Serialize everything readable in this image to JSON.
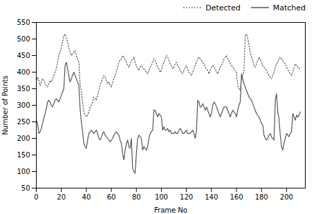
{
  "chart_data": {
    "type": "line",
    "x": [
      0,
      1,
      2,
      3,
      4,
      5,
      6,
      7,
      8,
      9,
      10,
      11,
      12,
      13,
      14,
      15,
      16,
      17,
      18,
      19,
      20,
      21,
      22,
      23,
      24,
      25,
      26,
      27,
      28,
      29,
      30,
      31,
      32,
      33,
      34,
      35,
      36,
      37,
      38,
      39,
      40,
      41,
      42,
      43,
      44,
      45,
      46,
      47,
      48,
      49,
      50,
      51,
      52,
      53,
      54,
      55,
      56,
      57,
      58,
      59,
      60,
      61,
      62,
      63,
      64,
      65,
      66,
      67,
      68,
      69,
      70,
      71,
      72,
      73,
      74,
      75,
      76,
      77,
      78,
      79,
      80,
      81,
      82,
      83,
      84,
      85,
      86,
      87,
      88,
      89,
      90,
      91,
      92,
      93,
      94,
      95,
      96,
      97,
      98,
      99,
      100,
      101,
      102,
      103,
      104,
      105,
      106,
      107,
      108,
      109,
      110,
      111,
      112,
      113,
      114,
      115,
      116,
      117,
      118,
      119,
      120,
      121,
      122,
      123,
      124,
      125,
      126,
      127,
      128,
      129,
      130,
      131,
      132,
      133,
      134,
      135,
      136,
      137,
      138,
      139,
      140,
      141,
      142,
      143,
      144,
      145,
      146,
      147,
      148,
      149,
      150,
      151,
      152,
      153,
      154,
      155,
      156,
      157,
      158,
      159,
      160,
      161,
      162,
      163,
      164,
      165,
      166,
      167,
      168,
      169,
      170,
      171,
      172,
      173,
      174,
      175,
      176,
      177,
      178,
      179,
      180,
      181,
      182,
      183,
      184,
      185,
      186,
      187,
      188,
      189,
      190,
      191,
      192,
      193,
      194,
      195,
      196,
      197,
      198,
      199,
      200,
      201,
      202,
      203,
      204,
      205,
      206,
      207,
      208,
      209,
      210,
      211
    ],
    "series": [
      {
        "name": "Detected",
        "color": "#555555",
        "line_style": "dotted",
        "values": [
          370,
          385,
          375,
          360,
          370,
          380,
          375,
          365,
          360,
          355,
          365,
          375,
          370,
          380,
          390,
          400,
          410,
          430,
          450,
          460,
          475,
          490,
          510,
          515,
          505,
          490,
          475,
          460,
          450,
          455,
          460,
          465,
          450,
          440,
          430,
          365,
          340,
          310,
          280,
          270,
          265,
          270,
          280,
          295,
          300,
          310,
          325,
          320,
          315,
          330,
          345,
          360,
          370,
          380,
          390,
          385,
          375,
          365,
          370,
          360,
          355,
          370,
          380,
          390,
          400,
          415,
          430,
          435,
          440,
          450,
          445,
          435,
          430,
          420,
          415,
          425,
          435,
          440,
          445,
          430,
          420,
          410,
          405,
          415,
          420,
          415,
          410,
          405,
          400,
          395,
          405,
          415,
          420,
          430,
          440,
          435,
          425,
          415,
          410,
          400,
          405,
          420,
          430,
          440,
          450,
          445,
          435,
          425,
          420,
          410,
          415,
          425,
          430,
          420,
          415,
          405,
          400,
          395,
          405,
          415,
          420,
          410,
          400,
          395,
          390,
          400,
          410,
          420,
          430,
          440,
          445,
          440,
          435,
          430,
          425,
          415,
          410,
          405,
          395,
          405,
          415,
          420,
          415,
          410,
          400,
          395,
          405,
          415,
          420,
          430,
          440,
          445,
          450,
          440,
          435,
          425,
          420,
          415,
          410,
          405,
          400,
          360,
          350,
          345,
          380,
          390,
          400,
          510,
          515,
          505,
          480,
          460,
          445,
          435,
          420,
          415,
          425,
          435,
          445,
          440,
          430,
          420,
          415,
          410,
          405,
          395,
          390,
          385,
          380,
          390,
          400,
          415,
          425,
          430,
          440,
          445,
          440,
          435,
          430,
          425,
          415,
          410,
          400,
          395,
          390,
          400,
          415,
          425,
          420,
          415,
          410,
          415
        ]
      },
      {
        "name": "Matched",
        "color": "#555555",
        "line_style": "solid",
        "values": [
          255,
          245,
          215,
          220,
          230,
          245,
          260,
          275,
          290,
          310,
          315,
          310,
          300,
          295,
          305,
          315,
          320,
          315,
          310,
          320,
          330,
          340,
          350,
          420,
          430,
          410,
          390,
          370,
          380,
          390,
          400,
          390,
          380,
          370,
          360,
          290,
          250,
          220,
          185,
          175,
          170,
          195,
          215,
          220,
          225,
          220,
          215,
          220,
          225,
          215,
          200,
          195,
          205,
          215,
          220,
          210,
          205,
          200,
          195,
          190,
          195,
          200,
          210,
          215,
          220,
          215,
          210,
          195,
          185,
          155,
          135,
          165,
          185,
          195,
          175,
          170,
          200,
          110,
          100,
          95,
          155,
          200,
          210,
          205,
          200,
          165,
          175,
          170,
          165,
          175,
          200,
          215,
          220,
          225,
          285,
          285,
          275,
          265,
          275,
          270,
          265,
          225,
          235,
          225,
          225,
          230,
          220,
          225,
          215,
          215,
          215,
          220,
          215,
          215,
          225,
          230,
          225,
          215,
          215,
          220,
          225,
          215,
          215,
          215,
          220,
          225,
          215,
          200,
          220,
          315,
          310,
          295,
          295,
          305,
          295,
          285,
          295,
          285,
          275,
          265,
          275,
          300,
          310,
          305,
          295,
          285,
          275,
          265,
          275,
          285,
          295,
          295,
          295,
          285,
          275,
          265,
          275,
          285,
          280,
          275,
          265,
          285,
          300,
          310,
          395,
          380,
          365,
          355,
          345,
          335,
          325,
          320,
          315,
          305,
          295,
          285,
          275,
          270,
          265,
          255,
          245,
          240,
          210,
          200,
          195,
          200,
          210,
          215,
          205,
          200,
          195,
          315,
          335,
          280,
          260,
          210,
          175,
          165,
          185,
          200,
          215,
          210,
          205,
          215,
          220,
          275,
          265,
          255,
          270,
          265,
          270,
          280
        ]
      }
    ],
    "xlabel": "Frame No",
    "ylabel": "Number of Points",
    "xlim": [
      0,
      215
    ],
    "ylim": [
      50,
      550
    ],
    "xticks": [
      0,
      20,
      40,
      60,
      80,
      100,
      120,
      140,
      160,
      180,
      200
    ],
    "yticks": [
      50,
      100,
      150,
      200,
      250,
      300,
      350,
      400,
      450,
      500,
      550
    ],
    "legend": "upper right",
    "grid": false
  }
}
